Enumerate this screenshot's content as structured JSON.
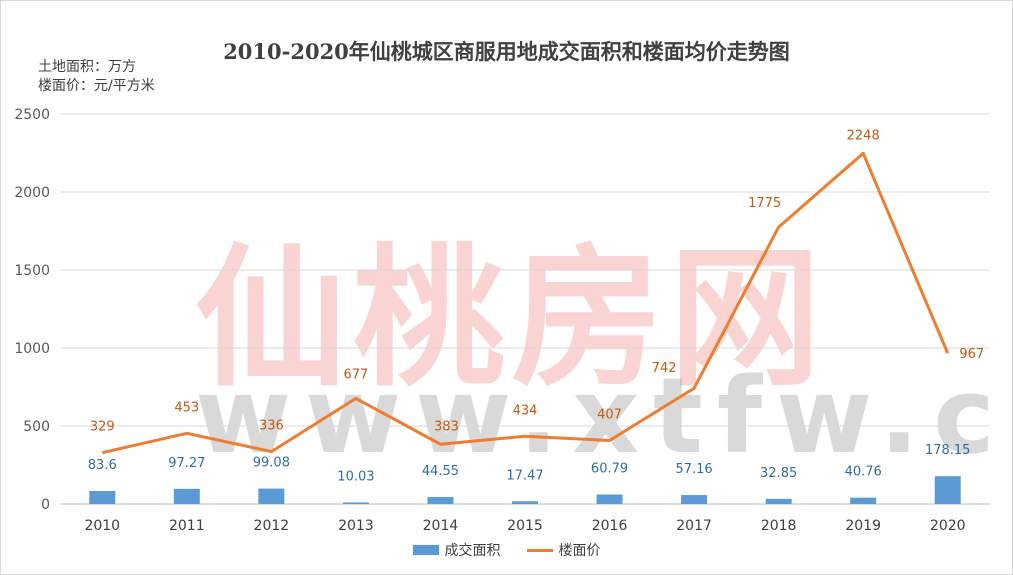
{
  "chart_data": {
    "type": "bar+line",
    "title": "2010-2020年仙桃城区商服用地成交面积和楼面均价走势图",
    "unit_notes": [
      "土地面积：万方",
      "楼面价：元/平方米"
    ],
    "categories": [
      "2010",
      "2011",
      "2012",
      "2013",
      "2014",
      "2015",
      "2016",
      "2017",
      "2018",
      "2019",
      "2020"
    ],
    "series": [
      {
        "name": "成交面积",
        "type": "bar",
        "color": "#5b9bd5",
        "values": [
          83.6,
          97.27,
          99.08,
          10.03,
          44.55,
          17.47,
          60.79,
          57.16,
          32.85,
          40.76,
          178.15
        ],
        "labels": [
          "83.6",
          "97.27",
          "99.08",
          "10.03",
          "44.55",
          "17.47",
          "60.79",
          "57.16",
          "32.85",
          "40.76",
          "178.15"
        ]
      },
      {
        "name": "楼面价",
        "type": "line",
        "color": "#ed7d31",
        "values": [
          329,
          453,
          336,
          677,
          383,
          434,
          407,
          742,
          1775,
          2248,
          967
        ],
        "labels": [
          "329",
          "453",
          "336",
          "677",
          "383",
          "434",
          "407",
          "742",
          "1775",
          "2248",
          "967"
        ]
      }
    ],
    "ylim": [
      0,
      2500
    ],
    "yticks": [
      "0",
      "500",
      "1000",
      "1500",
      "2000",
      "2500"
    ],
    "ytick_values": [
      0,
      500,
      1000,
      1500,
      2000,
      2500
    ],
    "grid": true,
    "legend_position": "bottom"
  },
  "watermark": {
    "text_cn": "仙桃房网",
    "text_en": "www.xtfw.cn"
  }
}
